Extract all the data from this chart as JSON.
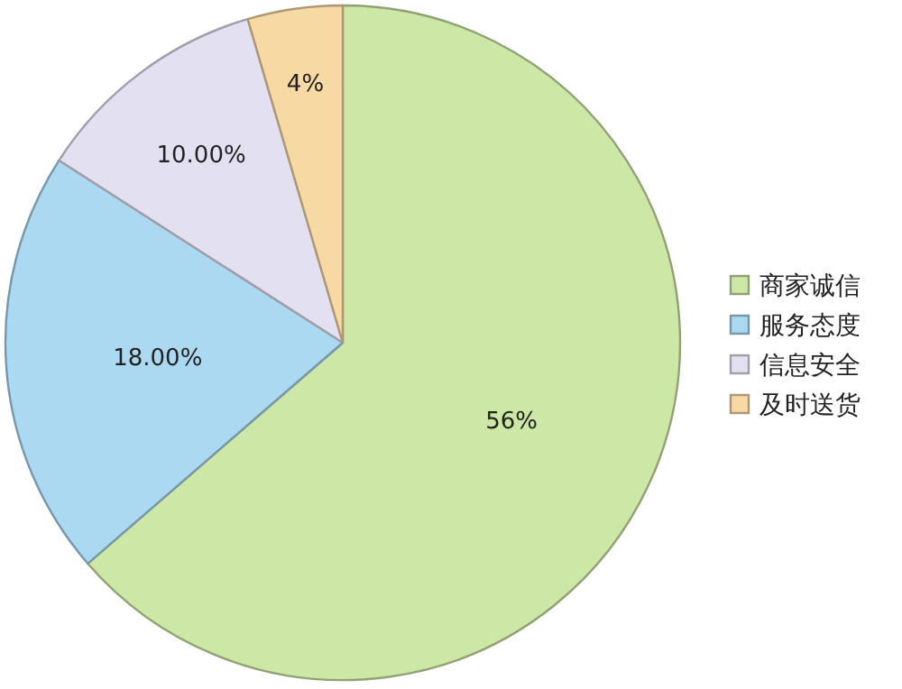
{
  "chart_data": {
    "type": "pie",
    "categories": [
      "商家诚信",
      "服务态度",
      "信息安全",
      "及时送货"
    ],
    "values": [
      56,
      18,
      10,
      4
    ],
    "colors": [
      "#cde7a6",
      "#acd9f2",
      "#e3e1f1",
      "#f7d9a4"
    ],
    "value_labels": [
      "56%",
      "18.00%",
      "10.00%",
      "4%"
    ],
    "legend": "right"
  }
}
